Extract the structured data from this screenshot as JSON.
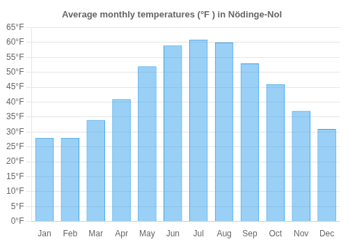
{
  "chart_data": {
    "type": "bar",
    "title": "Average monthly temperatures (°F ) in Nödinge-Nol",
    "categories": [
      "Jan",
      "Feb",
      "Mar",
      "Apr",
      "May",
      "Jun",
      "Jul",
      "Aug",
      "Sep",
      "Oct",
      "Nov",
      "Dec"
    ],
    "values": [
      28,
      28,
      34,
      41,
      52,
      59,
      61,
      60,
      53,
      46,
      37,
      31
    ],
    "ylim": [
      0,
      65
    ],
    "yticks": [
      {
        "value": 0,
        "label": "0°F"
      },
      {
        "value": 5,
        "label": "5°F"
      },
      {
        "value": 10,
        "label": "10°F"
      },
      {
        "value": 15,
        "label": "15°F"
      },
      {
        "value": 20,
        "label": "20°F"
      },
      {
        "value": 25,
        "label": "25°F"
      },
      {
        "value": 30,
        "label": "30°F"
      },
      {
        "value": 35,
        "label": "35°F"
      },
      {
        "value": 40,
        "label": "40°F"
      },
      {
        "value": 45,
        "label": "45°F"
      },
      {
        "value": 50,
        "label": "50°F"
      },
      {
        "value": 55,
        "label": "55°F"
      },
      {
        "value": 60,
        "label": "60°F"
      },
      {
        "value": 65,
        "label": "65°F"
      }
    ],
    "grid": true
  }
}
